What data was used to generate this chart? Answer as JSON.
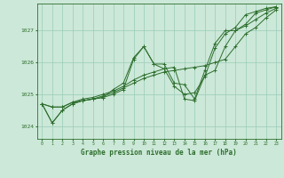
{
  "title": "Graphe pression niveau de la mer (hPa)",
  "bg_color": "#cce8d8",
  "grid_color": "#99ccb8",
  "line_color": "#2d6e2d",
  "xlim": [
    -0.5,
    23.5
  ],
  "ylim": [
    1023.6,
    1027.85
  ],
  "yticks": [
    1024,
    1025,
    1026,
    1027
  ],
  "xticks": [
    0,
    1,
    2,
    3,
    4,
    5,
    6,
    7,
    8,
    9,
    10,
    11,
    12,
    13,
    14,
    15,
    16,
    17,
    18,
    19,
    20,
    21,
    22,
    23
  ],
  "series": [
    [
      1024.7,
      1024.1,
      1024.5,
      1024.7,
      1024.8,
      1024.85,
      1024.9,
      1025.0,
      1025.15,
      1026.1,
      1026.5,
      1025.95,
      1025.8,
      1025.25,
      1025.0,
      1025.05,
      1025.55,
      1026.45,
      1026.9,
      1027.1,
      1027.5,
      1027.6,
      1027.7,
      1027.75
    ],
    [
      1024.7,
      1024.6,
      1024.6,
      1024.75,
      1024.8,
      1024.85,
      1024.95,
      1025.05,
      1025.2,
      1025.35,
      1025.5,
      1025.6,
      1025.7,
      1025.75,
      1025.8,
      1025.85,
      1025.9,
      1026.0,
      1026.1,
      1026.5,
      1026.9,
      1027.1,
      1027.4,
      1027.65
    ],
    [
      1024.7,
      1024.6,
      1024.6,
      1024.75,
      1024.85,
      1024.9,
      1025.0,
      1025.1,
      1025.25,
      1025.45,
      1025.6,
      1025.7,
      1025.8,
      1025.85,
      1024.85,
      1024.8,
      1025.6,
      1025.75,
      1026.5,
      1027.0,
      1027.15,
      1027.35,
      1027.55,
      1027.7
    ],
    [
      1024.7,
      1024.1,
      1024.5,
      1024.7,
      1024.8,
      1024.85,
      1024.9,
      1025.15,
      1025.35,
      1026.15,
      1026.5,
      1025.95,
      1025.95,
      1025.35,
      1025.3,
      1024.85,
      1025.75,
      1026.6,
      1027.0,
      1027.0,
      1027.2,
      1027.55,
      1027.65,
      1027.75
    ]
  ]
}
